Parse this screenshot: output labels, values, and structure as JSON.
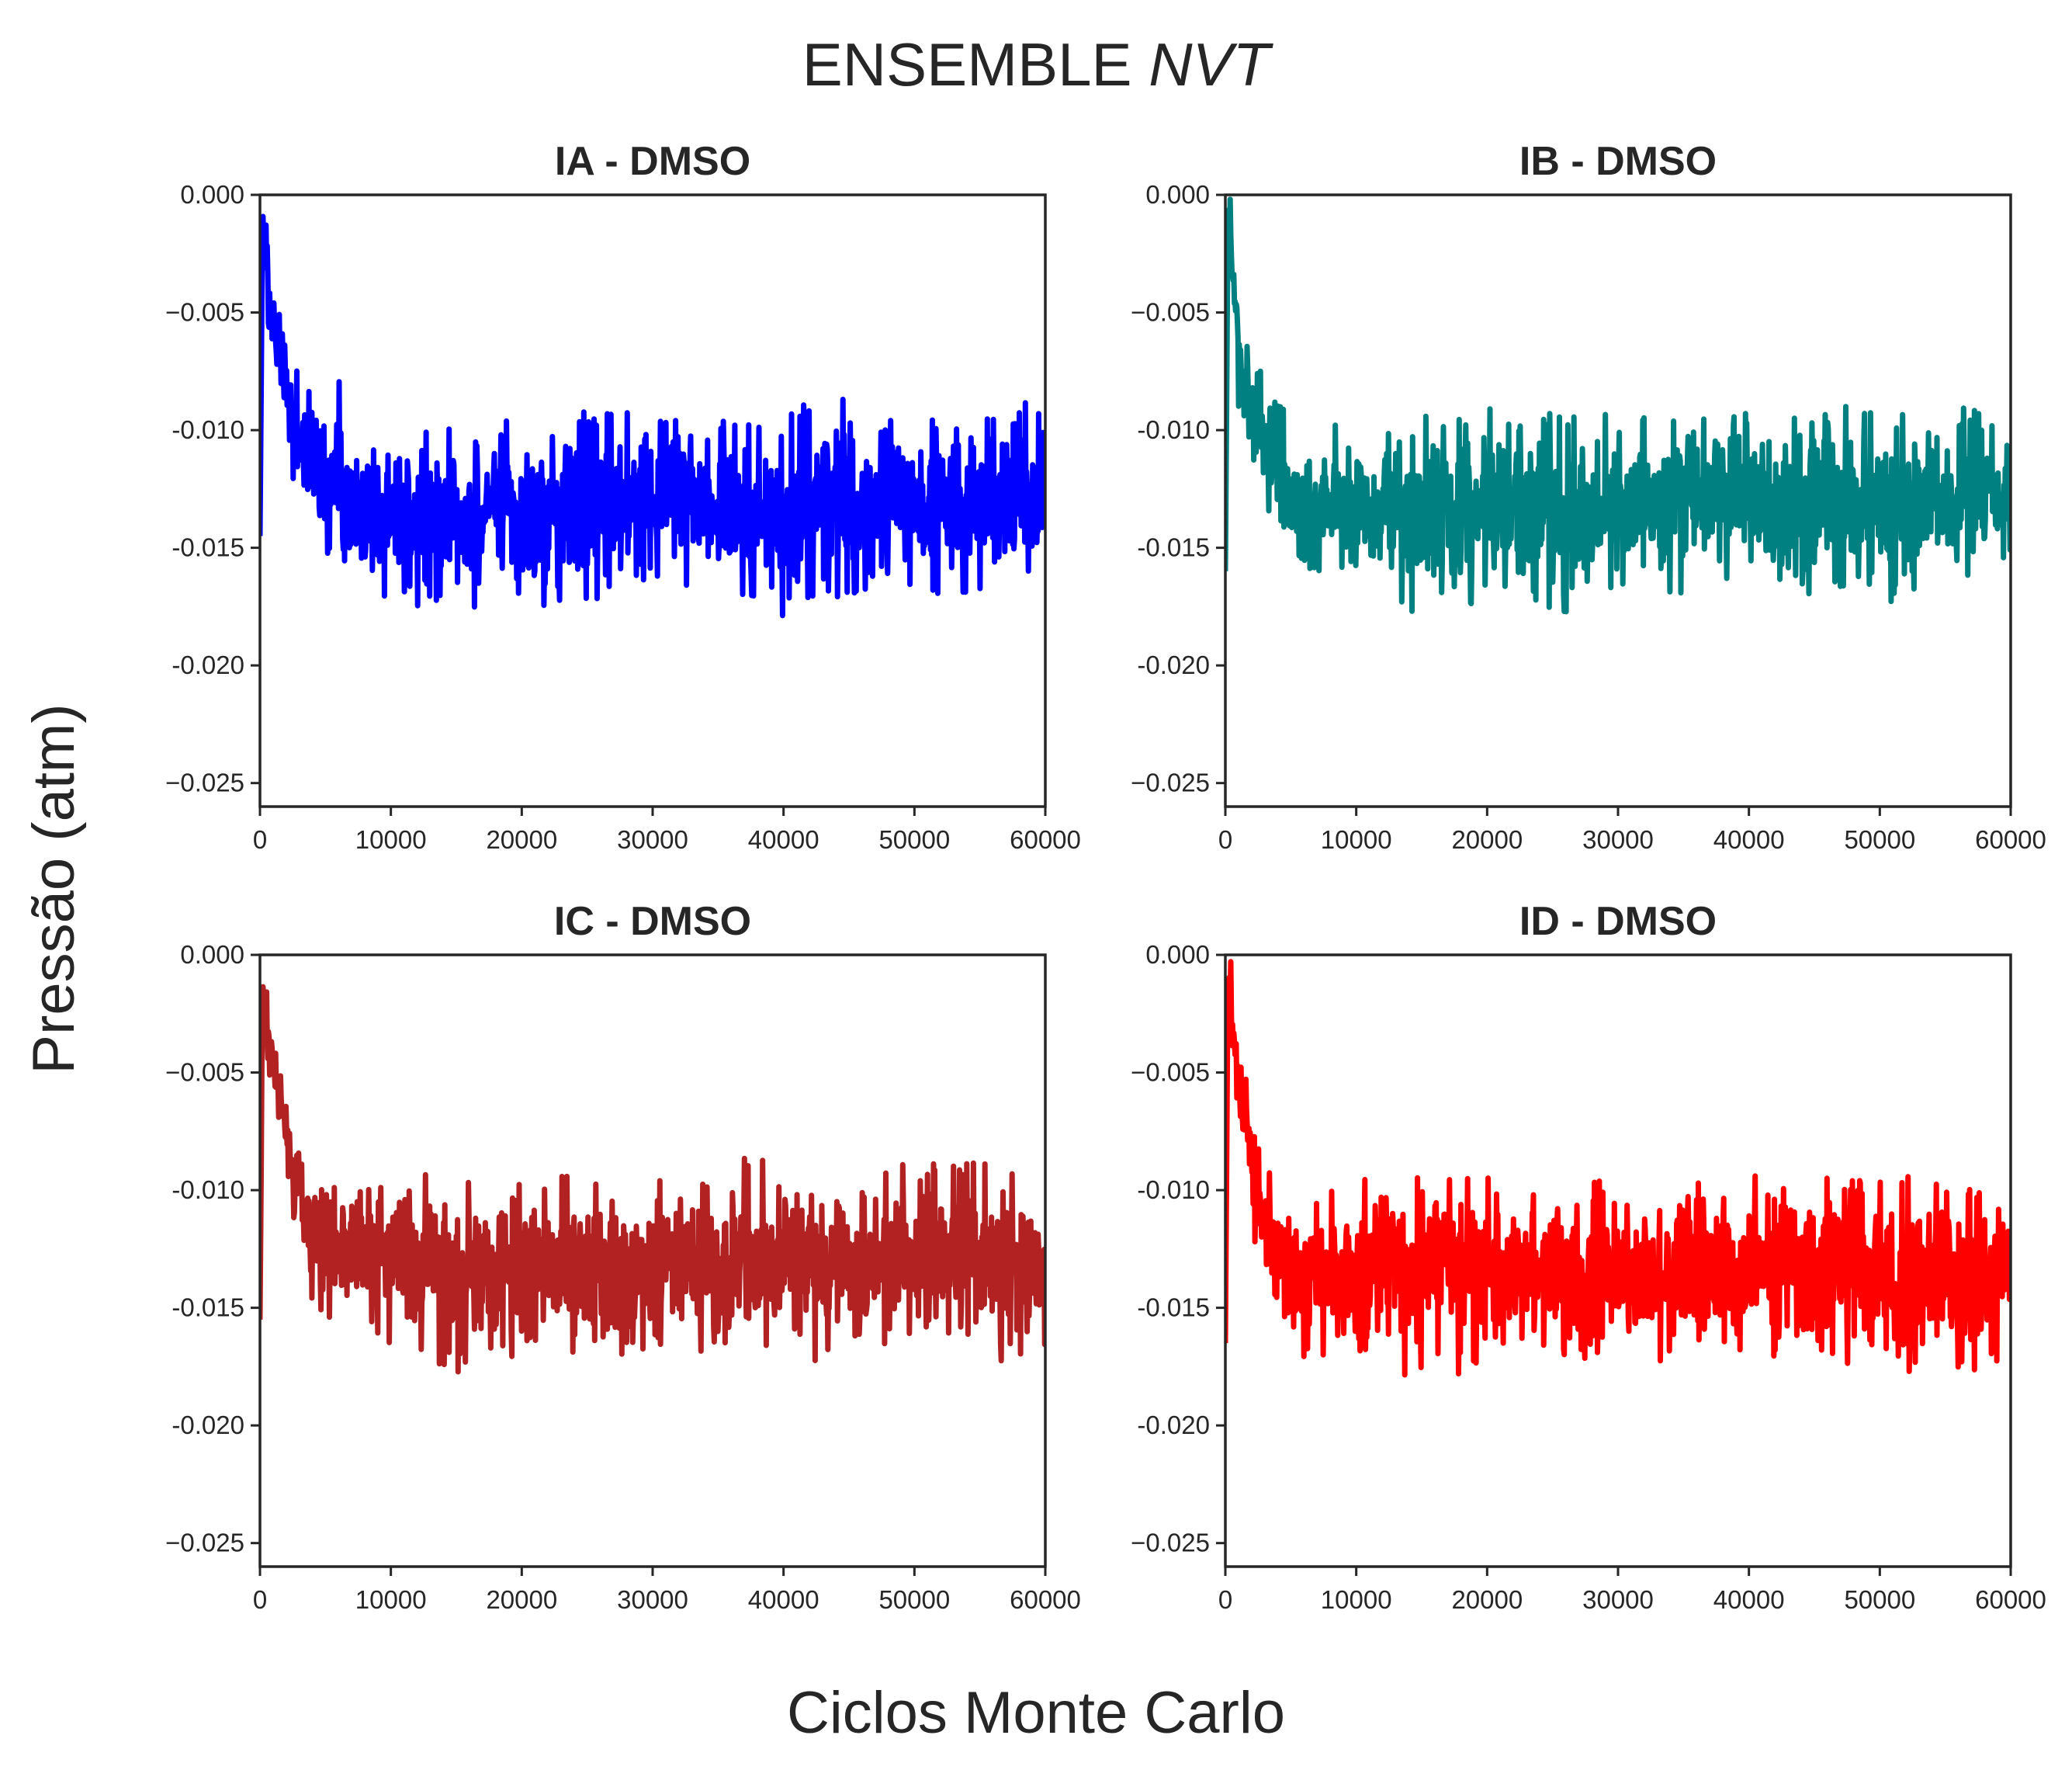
{
  "figure": {
    "suptitle_text": "ENSEMBLE ",
    "suptitle_italic": "NVT",
    "xlabel": "Ciclos Monte Carlo",
    "ylabel": "Pressão (atm)"
  },
  "chart_data": [
    {
      "type": "line",
      "title": "IA - DMSO",
      "color": "#0000ff",
      "xlim": [
        0,
        60000
      ],
      "ylim": [
        -0.026,
        0.0
      ],
      "xticks": [
        0,
        10000,
        20000,
        30000,
        40000,
        50000,
        60000
      ],
      "xtick_labels": [
        "0",
        "10000",
        "20000",
        "30000",
        "40000",
        "50000",
        "60000"
      ],
      "yticks": [
        0.0,
        -0.005,
        -0.01,
        -0.015,
        -0.02,
        -0.025
      ],
      "ytick_labels": [
        "0.000",
        "−0.005",
        "-0.010",
        "-0.015",
        "-0.020",
        "−0.025"
      ],
      "series": [
        {
          "x": [
            0,
            200,
            400,
            700,
            1000,
            1500,
            2000,
            2500,
            3000,
            3500,
            4000,
            4500,
            5000,
            6000,
            8000,
            10000,
            15000,
            20000,
            25000,
            30000,
            35000,
            40000,
            44000,
            45000,
            50000,
            55000,
            60000
          ],
          "upper": [
            -0.0145,
            0.0,
            0.0,
            -0.002,
            -0.004,
            -0.005,
            -0.0055,
            -0.007,
            -0.0075,
            -0.008,
            -0.0085,
            -0.009,
            -0.0095,
            -0.0078,
            -0.0101,
            -0.0101,
            -0.0098,
            -0.0095,
            -0.0092,
            -0.0089,
            -0.0091,
            -0.0096,
            -0.0075,
            -0.0092,
            -0.0094,
            -0.0093,
            -0.0086
          ],
          "lower": [
            -0.0145,
            -0.001,
            -0.004,
            -0.006,
            -0.008,
            -0.009,
            -0.011,
            -0.0125,
            -0.0135,
            -0.0145,
            -0.015,
            -0.016,
            -0.0168,
            -0.0165,
            -0.0172,
            -0.0173,
            -0.018,
            -0.0175,
            -0.0178,
            -0.0165,
            -0.0172,
            -0.0179,
            -0.0173,
            -0.0172,
            -0.017,
            -0.0175,
            -0.0165
          ]
        }
      ]
    },
    {
      "type": "line",
      "title": "IB - DMSO",
      "color": "#008080",
      "xlim": [
        0,
        60000
      ],
      "ylim": [
        -0.026,
        0.0
      ],
      "xticks": [
        0,
        10000,
        20000,
        30000,
        40000,
        50000,
        60000
      ],
      "xtick_labels": [
        "0",
        "10000",
        "20000",
        "30000",
        "40000",
        "50000",
        "60000"
      ],
      "yticks": [
        0.0,
        -0.005,
        -0.01,
        -0.015,
        -0.02,
        -0.025
      ],
      "ytick_labels": [
        "0.000",
        "−0.005",
        "-0.010",
        "-0.015",
        "-0.020",
        "−0.025"
      ],
      "series": [
        {
          "x": [
            0,
            200,
            400,
            700,
            1000,
            1500,
            2000,
            2500,
            3000,
            3500,
            4000,
            4500,
            5000,
            6000,
            8000,
            10000,
            15000,
            20000,
            25000,
            30000,
            35000,
            40000,
            45000,
            46000,
            50000,
            55000,
            60000
          ],
          "upper": [
            -0.016,
            0.0,
            0.0,
            -0.002,
            -0.004,
            -0.006,
            -0.0065,
            -0.007,
            -0.0075,
            -0.008,
            -0.0085,
            -0.009,
            -0.0095,
            -0.0105,
            -0.0095,
            -0.0105,
            -0.0087,
            -0.009,
            -0.0088,
            -0.0094,
            -0.009,
            -0.0093,
            -0.009,
            -0.008,
            -0.0095,
            -0.009,
            -0.0092
          ],
          "lower": [
            -0.016,
            -0.002,
            -0.005,
            -0.007,
            -0.009,
            -0.0105,
            -0.0115,
            -0.0125,
            -0.0135,
            -0.0142,
            -0.0148,
            -0.0155,
            -0.0165,
            -0.0168,
            -0.0165,
            -0.0163,
            -0.018,
            -0.0176,
            -0.018,
            -0.0168,
            -0.017,
            -0.0165,
            -0.0177,
            -0.0172,
            -0.0174,
            -0.0172,
            -0.0158
          ]
        }
      ]
    },
    {
      "type": "line",
      "title": "IC - DMSO",
      "color": "#b22222",
      "xlim": [
        0,
        60000
      ],
      "ylim": [
        -0.026,
        0.0
      ],
      "xticks": [
        0,
        10000,
        20000,
        30000,
        40000,
        50000,
        60000
      ],
      "xtick_labels": [
        "0",
        "10000",
        "20000",
        "30000",
        "40000",
        "50000",
        "60000"
      ],
      "yticks": [
        0.0,
        -0.005,
        -0.01,
        -0.015,
        -0.02,
        -0.025
      ],
      "ytick_labels": [
        "0.000",
        "−0.005",
        "-0.010",
        "-0.015",
        "-0.020",
        "−0.025"
      ],
      "series": [
        {
          "x": [
            0,
            200,
            400,
            700,
            1000,
            1500,
            2000,
            2500,
            3000,
            3500,
            4000,
            4500,
            5000,
            6000,
            8000,
            10000,
            15000,
            20000,
            25000,
            30000,
            35000,
            37000,
            40000,
            45000,
            49000,
            50000,
            55000,
            60000
          ],
          "upper": [
            -0.0155,
            0.0,
            0.0,
            -0.002,
            -0.0025,
            -0.004,
            -0.005,
            -0.0065,
            -0.0075,
            -0.008,
            -0.0085,
            -0.009,
            -0.0093,
            -0.0095,
            -0.0092,
            -0.0093,
            -0.0092,
            -0.0091,
            -0.0095,
            -0.009,
            -0.0095,
            -0.0085,
            -0.0088,
            -0.009,
            -0.0081,
            -0.0089,
            -0.0088,
            -0.0092
          ],
          "lower": [
            -0.0155,
            -0.002,
            -0.004,
            -0.006,
            -0.007,
            -0.008,
            -0.0105,
            -0.0125,
            -0.0135,
            -0.0142,
            -0.0148,
            -0.0152,
            -0.0158,
            -0.0162,
            -0.0165,
            -0.0168,
            -0.018,
            -0.017,
            -0.0172,
            -0.0175,
            -0.0178,
            -0.0172,
            -0.017,
            -0.0175,
            -0.0165,
            -0.017,
            -0.0175,
            -0.0168
          ]
        }
      ]
    },
    {
      "type": "line",
      "title": "ID - DMSO",
      "color": "#ff0000",
      "xlim": [
        0,
        60000
      ],
      "ylim": [
        -0.026,
        0.0
      ],
      "xticks": [
        0,
        10000,
        20000,
        30000,
        40000,
        50000,
        60000
      ],
      "xtick_labels": [
        "0",
        "10000",
        "20000",
        "30000",
        "40000",
        "50000",
        "60000"
      ],
      "yticks": [
        0.0,
        -0.005,
        -0.01,
        -0.015,
        -0.02,
        -0.025
      ],
      "ytick_labels": [
        "0.000",
        "−0.005",
        "-0.010",
        "-0.015",
        "-0.020",
        "−0.025"
      ],
      "series": [
        {
          "x": [
            0,
            200,
            400,
            700,
            1000,
            1500,
            2000,
            2500,
            3000,
            3500,
            4000,
            4500,
            5000,
            6000,
            8000,
            10000,
            15000,
            20000,
            25000,
            30000,
            35000,
            38000,
            40000,
            45000,
            50000,
            55000,
            60000
          ],
          "upper": [
            -0.0165,
            0.0,
            0.0,
            -0.002,
            -0.003,
            -0.004,
            -0.0065,
            -0.008,
            -0.0085,
            -0.009,
            -0.0095,
            -0.0098,
            -0.0102,
            -0.0105,
            -0.0099,
            -0.0095,
            -0.0094,
            -0.0093,
            -0.0097,
            -0.0095,
            -0.0093,
            -0.0087,
            -0.0094,
            -0.0092,
            -0.0094,
            -0.0093,
            -0.0095
          ],
          "lower": [
            -0.0165,
            -0.002,
            -0.004,
            -0.006,
            -0.0075,
            -0.009,
            -0.0115,
            -0.013,
            -0.014,
            -0.015,
            -0.0158,
            -0.0165,
            -0.0172,
            -0.0173,
            -0.0172,
            -0.0175,
            -0.018,
            -0.0178,
            -0.018,
            -0.0175,
            -0.0177,
            -0.0172,
            -0.0175,
            -0.0178,
            -0.0177,
            -0.018,
            -0.0175
          ]
        }
      ]
    }
  ]
}
